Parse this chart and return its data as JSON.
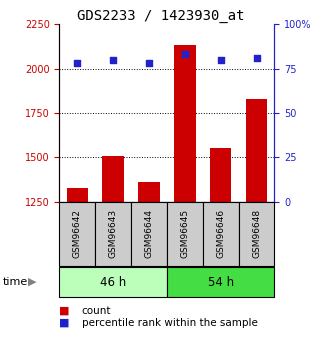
{
  "title": "GDS2233 / 1423930_at",
  "samples": [
    "GSM96642",
    "GSM96643",
    "GSM96644",
    "GSM96645",
    "GSM96646",
    "GSM96648"
  ],
  "count_values": [
    1330,
    1510,
    1360,
    2130,
    1555,
    1830
  ],
  "percentile_values": [
    78,
    80,
    78,
    83,
    80,
    81
  ],
  "groups": [
    {
      "label": "46 h",
      "indices": [
        0,
        1,
        2
      ],
      "color": "#bbffbb"
    },
    {
      "label": "54 h",
      "indices": [
        3,
        4,
        5
      ],
      "color": "#44dd44"
    }
  ],
  "ylim_left": [
    1250,
    2250
  ],
  "ylim_right": [
    0,
    100
  ],
  "yticks_left": [
    1250,
    1500,
    1750,
    2000,
    2250
  ],
  "yticks_right": [
    0,
    25,
    50,
    75,
    100
  ],
  "bar_color": "#cc0000",
  "dot_color": "#2222cc",
  "title_fontsize": 10,
  "tick_label_fontsize": 7,
  "legend_fontsize": 7.5,
  "sample_box_color": "#cccccc",
  "time_label": "time",
  "grid_ticks": [
    1500,
    1750,
    2000
  ]
}
